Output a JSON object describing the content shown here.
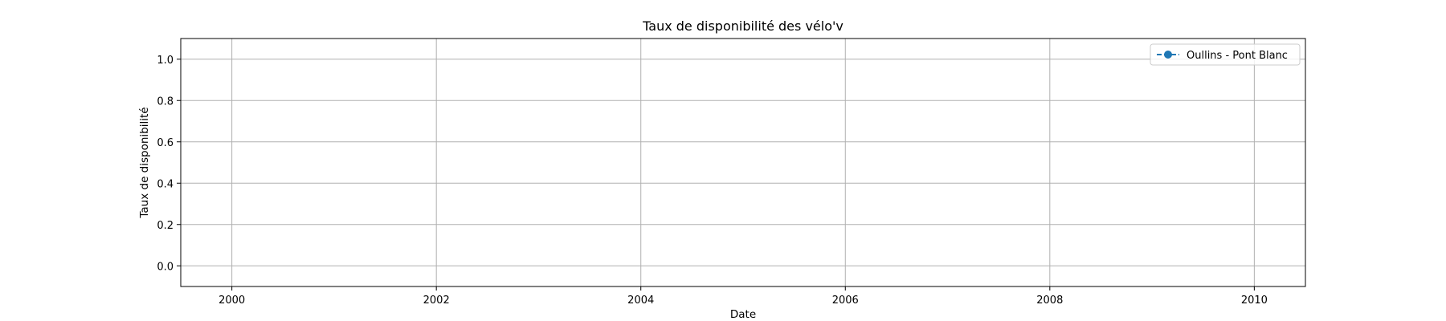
{
  "chart_data": {
    "type": "line",
    "title": "Taux de disponibilité des vélo'v",
    "xlabel": "Date",
    "ylabel": "Taux de disponibilité",
    "xlim": [
      1999.5,
      2010.5
    ],
    "ylim": [
      -0.1,
      1.1
    ],
    "x_ticks": [
      2000,
      2002,
      2004,
      2006,
      2008,
      2010
    ],
    "x_tick_labels": [
      "2000",
      "2002",
      "2004",
      "2006",
      "2008",
      "2010"
    ],
    "y_ticks": [
      0.0,
      0.2,
      0.4,
      0.6,
      0.8,
      1.0
    ],
    "y_tick_labels": [
      "0.0",
      "0.2",
      "0.4",
      "0.6",
      "0.8",
      "1.0"
    ],
    "grid": true,
    "legend_position": "top-right",
    "series": [
      {
        "name": "Oullins - Pont Blanc",
        "color": "#1f77b4",
        "marker": "circle",
        "linestyle": "dashed",
        "x": [],
        "y": []
      }
    ]
  }
}
